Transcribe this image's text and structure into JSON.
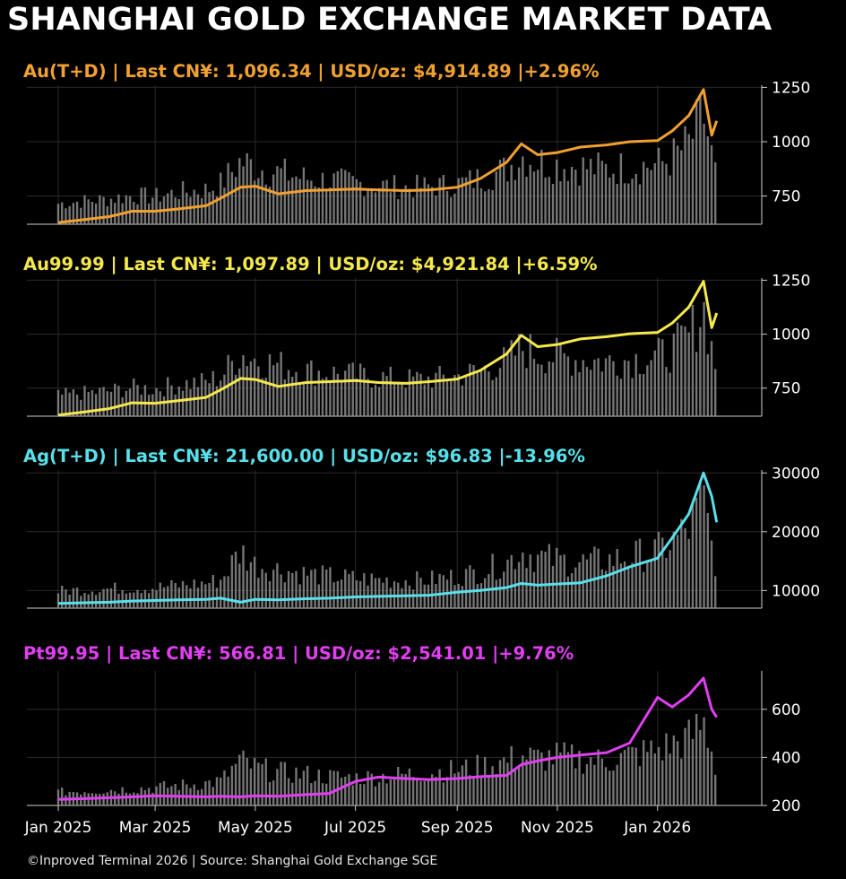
{
  "title": "SHANGHAI GOLD EXCHANGE MARKET DATA",
  "footer": "©Inproved Terminal 2026 | Source: Shanghai Gold Exchange SGE",
  "chart_data": [
    {
      "type": "line",
      "title": "Au(T+D)  |  Last CN¥: 1,096.34  |  USD/oz: $4,914.89 |+2.96%",
      "color": "#f0a030",
      "ylim": [
        620,
        1260
      ],
      "yticks": [
        750,
        1000,
        1250
      ],
      "x_axis": {
        "start": "2025-01-01",
        "end": "2026-02-10"
      },
      "series": [
        {
          "x": [
            "2025-01-01",
            "2025-01-15",
            "2025-02-01",
            "2025-02-15",
            "2025-03-01",
            "2025-03-15",
            "2025-04-01",
            "2025-04-10",
            "2025-04-22",
            "2025-05-01",
            "2025-05-15",
            "2025-06-01",
            "2025-06-15",
            "2025-07-01",
            "2025-07-15",
            "2025-08-01",
            "2025-08-15",
            "2025-09-01",
            "2025-09-15",
            "2025-10-01",
            "2025-10-10",
            "2025-10-20",
            "2025-11-01",
            "2025-11-15",
            "2025-12-01",
            "2025-12-15",
            "2026-01-01",
            "2026-01-10",
            "2026-01-20",
            "2026-01-29",
            "2026-02-03",
            "2026-02-06"
          ],
          "values": [
            628,
            640,
            655,
            680,
            680,
            690,
            705,
            740,
            790,
            795,
            760,
            775,
            778,
            782,
            778,
            775,
            778,
            790,
            830,
            905,
            990,
            940,
            950,
            975,
            985,
            1000,
            1005,
            1050,
            1120,
            1240,
            1030,
            1096
          ]
        }
      ],
      "volume": [
        18,
        20,
        22,
        25,
        24,
        28,
        30,
        35,
        55,
        50,
        45,
        40,
        38,
        36,
        34,
        32,
        33,
        35,
        40,
        48,
        60,
        55,
        52,
        50,
        48,
        50,
        52,
        58,
        70,
        95,
        60,
        40
      ]
    },
    {
      "type": "line",
      "title": "Au99.99  |  Last CN¥: 1,097.89  |  USD/oz: $4,921.84 |+6.59%",
      "color": "#f4e84c",
      "ylim": [
        620,
        1260
      ],
      "yticks": [
        750,
        1000,
        1250
      ],
      "x_axis": {
        "start": "2025-01-01",
        "end": "2026-02-10"
      },
      "series": [
        {
          "x": [
            "2025-01-01",
            "2025-01-15",
            "2025-02-01",
            "2025-02-15",
            "2025-03-01",
            "2025-03-15",
            "2025-04-01",
            "2025-04-10",
            "2025-04-22",
            "2025-05-01",
            "2025-05-15",
            "2025-06-01",
            "2025-06-15",
            "2025-07-01",
            "2025-07-15",
            "2025-08-01",
            "2025-08-15",
            "2025-09-01",
            "2025-09-15",
            "2025-10-01",
            "2025-10-10",
            "2025-10-20",
            "2025-11-01",
            "2025-11-15",
            "2025-12-01",
            "2025-12-15",
            "2026-01-01",
            "2026-01-10",
            "2026-01-20",
            "2026-01-29",
            "2026-02-03",
            "2026-02-06"
          ],
          "values": [
            625,
            638,
            655,
            682,
            680,
            692,
            707,
            742,
            795,
            790,
            758,
            776,
            780,
            785,
            776,
            772,
            780,
            792,
            832,
            908,
            995,
            942,
            952,
            978,
            988,
            1002,
            1008,
            1052,
            1125,
            1245,
            1030,
            1098
          ]
        }
      ],
      "volume": [
        18,
        20,
        22,
        25,
        24,
        28,
        30,
        35,
        55,
        50,
        45,
        40,
        38,
        36,
        34,
        32,
        33,
        35,
        40,
        48,
        60,
        55,
        52,
        50,
        48,
        50,
        52,
        58,
        70,
        95,
        60,
        40
      ]
    },
    {
      "type": "line",
      "title": "Ag(T+D)  |  Last CN¥: 21,600.00  |  USD/oz: $96.83 |-13.96%",
      "color": "#58e0ea",
      "ylim": [
        7000,
        30500
      ],
      "yticks": [
        10000,
        20000,
        30000
      ],
      "x_axis": {
        "start": "2025-01-01",
        "end": "2026-02-10"
      },
      "series": [
        {
          "x": [
            "2025-01-01",
            "2025-01-15",
            "2025-02-01",
            "2025-02-15",
            "2025-03-01",
            "2025-03-15",
            "2025-04-01",
            "2025-04-10",
            "2025-04-22",
            "2025-05-01",
            "2025-05-15",
            "2025-06-01",
            "2025-06-15",
            "2025-07-01",
            "2025-07-15",
            "2025-08-01",
            "2025-08-15",
            "2025-09-01",
            "2025-09-15",
            "2025-10-01",
            "2025-10-10",
            "2025-10-20",
            "2025-11-01",
            "2025-11-15",
            "2025-12-01",
            "2025-12-15",
            "2026-01-01",
            "2026-01-10",
            "2026-01-20",
            "2026-01-29",
            "2026-02-03",
            "2026-02-06"
          ],
          "values": [
            7800,
            7900,
            8000,
            8200,
            8300,
            8400,
            8500,
            8700,
            8000,
            8500,
            8400,
            8600,
            8700,
            8900,
            9000,
            9100,
            9200,
            9700,
            10000,
            10500,
            11200,
            10900,
            11100,
            11300,
            12500,
            14000,
            15500,
            19000,
            23000,
            30000,
            26000,
            21600
          ]
        }
      ],
      "volume": [
        15,
        16,
        17,
        18,
        18,
        20,
        22,
        25,
        50,
        38,
        34,
        30,
        28,
        26,
        25,
        24,
        25,
        28,
        32,
        40,
        50,
        45,
        42,
        40,
        42,
        45,
        50,
        58,
        70,
        95,
        55,
        35
      ]
    },
    {
      "type": "line",
      "title": "Pt99.95  |  Last CN¥: 566.81  |  USD/oz: $2,541.01 |+9.76%",
      "color": "#e03ef0",
      "ylim": [
        200,
        760
      ],
      "yticks": [
        200,
        400,
        600
      ],
      "x_axis": {
        "start": "2025-01-01",
        "end": "2026-02-10"
      },
      "series": [
        {
          "x": [
            "2025-01-01",
            "2025-01-15",
            "2025-02-01",
            "2025-02-15",
            "2025-03-01",
            "2025-03-15",
            "2025-04-01",
            "2025-04-10",
            "2025-04-22",
            "2025-05-01",
            "2025-05-15",
            "2025-06-01",
            "2025-06-15",
            "2025-07-01",
            "2025-07-15",
            "2025-08-01",
            "2025-08-15",
            "2025-09-01",
            "2025-09-15",
            "2025-10-01",
            "2025-10-10",
            "2025-10-20",
            "2025-11-01",
            "2025-11-15",
            "2025-12-01",
            "2025-12-15",
            "2026-01-01",
            "2026-01-10",
            "2026-01-20",
            "2026-01-29",
            "2026-02-03",
            "2026-02-06"
          ],
          "values": [
            225,
            228,
            232,
            236,
            240,
            238,
            236,
            238,
            236,
            240,
            238,
            245,
            250,
            300,
            318,
            312,
            308,
            312,
            320,
            325,
            370,
            385,
            400,
            410,
            420,
            460,
            650,
            610,
            660,
            730,
            600,
            567
          ]
        }
      ],
      "volume": [
        12,
        13,
        14,
        15,
        16,
        18,
        20,
        22,
        40,
        34,
        30,
        28,
        26,
        25,
        26,
        28,
        30,
        32,
        35,
        40,
        45,
        42,
        44,
        42,
        40,
        45,
        50,
        55,
        60,
        75,
        50,
        30
      ]
    }
  ],
  "x_tick_labels": [
    "Jan 2025",
    "Mar 2025",
    "May 2025",
    "Jul 2025",
    "Sep 2025",
    "Nov 2025",
    "Jan 2026"
  ],
  "x_tick_dates": [
    "2025-01-01",
    "2025-03-01",
    "2025-05-01",
    "2025-07-01",
    "2025-09-01",
    "2025-11-01",
    "2026-01-01"
  ]
}
